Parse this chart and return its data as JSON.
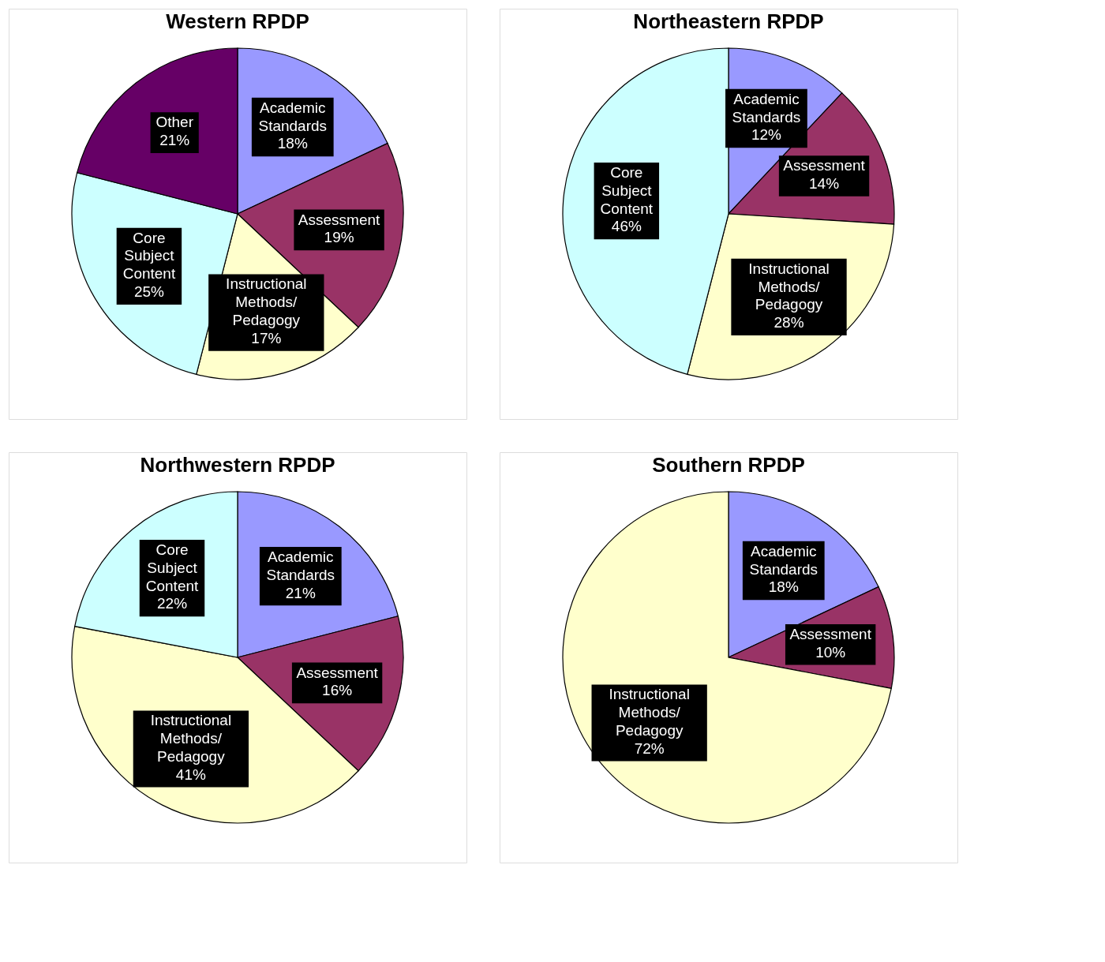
{
  "chart_data": [
    {
      "type": "pie",
      "title": "Western RPDP",
      "categories": [
        "Academic Standards",
        "Assessment",
        "Instructional Methods/ Pedagogy",
        "Core Subject Content",
        "Other"
      ],
      "values": [
        18,
        19,
        17,
        25,
        21
      ],
      "value_labels": [
        "18%",
        "19%",
        "17%",
        "25%",
        "21%"
      ],
      "colors": [
        "#9999ff",
        "#993366",
        "#ffffcc",
        "#ccffff",
        "#660066"
      ],
      "legend": false
    },
    {
      "type": "pie",
      "title": "Northeastern RPDP",
      "categories": [
        "Academic Standards",
        "Assessment",
        "Instructional Methods/ Pedagogy",
        "Core Subject Content"
      ],
      "values": [
        12,
        14,
        28,
        46
      ],
      "value_labels": [
        "12%",
        "14%",
        "28%",
        "46%"
      ],
      "colors": [
        "#9999ff",
        "#993366",
        "#ffffcc",
        "#ccffff"
      ],
      "legend": false
    },
    {
      "type": "pie",
      "title": "Northwestern RPDP",
      "categories": [
        "Academic Standards",
        "Assessment",
        "Instructional Methods/ Pedagogy",
        "Core Subject Content"
      ],
      "values": [
        21,
        16,
        41,
        22
      ],
      "value_labels": [
        "21%",
        "16%",
        "41%",
        "22%"
      ],
      "colors": [
        "#9999ff",
        "#993366",
        "#ffffcc",
        "#ccffff"
      ],
      "legend": false
    },
    {
      "type": "pie",
      "title": "Southern RPDP",
      "categories": [
        "Academic Standards",
        "Assessment",
        "Instructional Methods/ Pedagogy"
      ],
      "values": [
        18,
        10,
        72
      ],
      "value_labels": [
        "18%",
        "10%",
        "72%"
      ],
      "colors": [
        "#9999ff",
        "#993366",
        "#ffffcc"
      ],
      "legend": false
    }
  ]
}
